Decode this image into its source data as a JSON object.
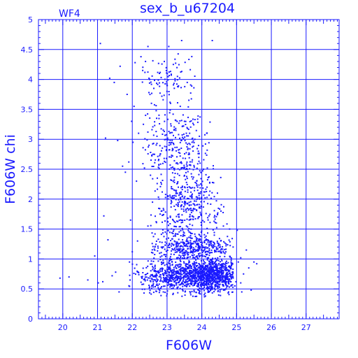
{
  "chart_data": {
    "type": "scatter",
    "title": "sex_b_u67204",
    "corner_label": "WF4",
    "xlabel": "F606W",
    "ylabel": "F606W chi",
    "xlim": [
      19.3,
      27.95
    ],
    "ylim": [
      0,
      5
    ],
    "x_ticks": [
      20,
      21,
      22,
      23,
      24,
      25,
      26,
      27
    ],
    "y_ticks": [
      0,
      0.5,
      1,
      1.5,
      2,
      2.5,
      3,
      3.5,
      4,
      4.5,
      5
    ],
    "x_tick_labels": [
      "20",
      "21",
      "22",
      "23",
      "24",
      "25",
      "26",
      "27"
    ],
    "y_tick_labels": [
      "0",
      "0.5",
      "1",
      "1.5",
      "2",
      "2.5",
      "3",
      "3.5",
      "4",
      "4.5",
      "5"
    ],
    "grid": true,
    "colors": {
      "ink": "#1a1aff",
      "background": "#ffffff"
    },
    "series": [
      {
        "points": [
          [
            19.92,
            0.68
          ],
          [
            20.18,
            0.7
          ],
          [
            20.72,
            0.65
          ],
          [
            20.92,
            1.05
          ],
          [
            21.02,
            0.6
          ],
          [
            21.08,
            4.6
          ],
          [
            21.15,
            0.62
          ],
          [
            21.18,
            1.72
          ],
          [
            21.23,
            3.02
          ],
          [
            21.3,
            1.32
          ],
          [
            21.35,
            4.02
          ],
          [
            21.42,
            0.72
          ],
          [
            21.48,
            3.95
          ],
          [
            21.52,
            0.78
          ],
          [
            21.58,
            2.98
          ],
          [
            21.62,
            0.45
          ],
          [
            21.65,
            4.22
          ],
          [
            21.72,
            2.55
          ],
          [
            21.8,
            2.45
          ],
          [
            21.85,
            3.75
          ],
          [
            21.9,
            2.62
          ],
          [
            21.92,
            0.95
          ],
          [
            21.95,
            1.65
          ],
          [
            21.98,
            3.3
          ],
          [
            22.0,
            1.12
          ],
          [
            22.02,
            2.95
          ],
          [
            22.05,
            3.55
          ],
          [
            22.08,
            4.28
          ],
          [
            22.12,
            2.3
          ],
          [
            22.15,
            1.3
          ],
          [
            22.18,
            3.1
          ],
          [
            22.25,
            4.38
          ],
          [
            22.3,
            4.15
          ],
          [
            22.32,
            3.25
          ],
          [
            22.38,
            4.3
          ],
          [
            22.45,
            4.55
          ],
          [
            22.5,
            4.0
          ],
          [
            22.55,
            3.6
          ],
          [
            22.62,
            3.85
          ],
          [
            22.7,
            3.35
          ],
          [
            22.78,
            4.1
          ],
          [
            22.85,
            3.72
          ],
          [
            22.92,
            4.3
          ],
          [
            23.0,
            3.9
          ],
          [
            23.05,
            4.55
          ],
          [
            23.1,
            3.6
          ],
          [
            23.18,
            4.25
          ],
          [
            23.25,
            3.15
          ],
          [
            23.3,
            4.05
          ],
          [
            23.38,
            3.55
          ],
          [
            23.42,
            4.65
          ],
          [
            23.5,
            3.3
          ],
          [
            23.58,
            3.95
          ],
          [
            23.65,
            3.1
          ],
          [
            23.72,
            2.95
          ],
          [
            23.8,
            3.0
          ],
          [
            23.9,
            2.8
          ],
          [
            23.95,
            2.6
          ],
          [
            24.05,
            2.5
          ],
          [
            24.15,
            2.2
          ],
          [
            24.3,
            4.65
          ],
          [
            24.45,
            2.1
          ],
          [
            24.55,
            1.8
          ],
          [
            24.62,
            1.55
          ],
          [
            24.7,
            1.25
          ],
          [
            24.8,
            1.5
          ],
          [
            24.9,
            1.2
          ],
          [
            24.95,
            0.55
          ],
          [
            25.02,
            1.48
          ],
          [
            25.05,
            0.95
          ],
          [
            25.12,
            0.6
          ],
          [
            25.2,
            0.75
          ],
          [
            25.28,
            1.15
          ],
          [
            25.35,
            0.85
          ],
          [
            25.42,
            0.48
          ],
          [
            25.5,
            0.95
          ],
          [
            25.58,
            0.92
          ],
          [
            25.12,
            1.02
          ],
          [
            24.98,
            0.62
          ],
          [
            25.15,
            0.45
          ],
          [
            22.48,
            2.9
          ],
          [
            22.6,
            2.75
          ],
          [
            22.35,
            2.52
          ],
          [
            22.72,
            2.35
          ],
          [
            22.58,
            1.95
          ],
          [
            22.8,
            1.75
          ],
          [
            22.45,
            1.55
          ],
          [
            22.95,
            1.45
          ],
          [
            22.65,
            1.2
          ],
          [
            22.85,
            1.05
          ]
        ],
        "clusters": [
          {
            "count": 900,
            "x_mean": 24.35,
            "x_sd": 0.42,
            "y_mean": 0.72,
            "y_sd": 0.15,
            "x_range": [
              23.0,
              24.9
            ],
            "y_range": [
              0.35,
              1.2
            ]
          },
          {
            "count": 450,
            "x_mean": 23.55,
            "x_sd": 0.45,
            "y_mean": 0.72,
            "y_sd": 0.14,
            "x_range": [
              22.35,
              24.9
            ],
            "y_range": [
              0.35,
              1.1
            ]
          },
          {
            "count": 220,
            "x_mean": 22.75,
            "x_sd": 0.38,
            "y_mean": 0.7,
            "y_sd": 0.16,
            "x_range": [
              21.9,
              23.4
            ],
            "y_range": [
              0.35,
              1.2
            ]
          },
          {
            "count": 420,
            "x_mean": 23.75,
            "x_sd": 0.55,
            "y_mean": 1.2,
            "y_sd": 0.12,
            "x_range": [
              22.5,
              24.9
            ],
            "y_range": [
              0.9,
              1.45
            ]
          },
          {
            "count": 480,
            "x_mean": 23.5,
            "x_sd": 0.55,
            "y_mean": 1.95,
            "y_sd": 0.4,
            "x_range": [
              22.5,
              24.75
            ],
            "y_range": [
              1.4,
              2.6
            ]
          },
          {
            "count": 280,
            "x_mean": 23.25,
            "x_sd": 0.5,
            "y_mean": 2.9,
            "y_sd": 0.35,
            "x_range": [
              22.3,
              24.3
            ],
            "y_range": [
              2.5,
              3.45
            ]
          },
          {
            "count": 120,
            "x_mean": 22.95,
            "x_sd": 0.5,
            "y_mean": 3.85,
            "y_sd": 0.35,
            "x_range": [
              22.2,
              23.8
            ],
            "y_range": [
              3.4,
              4.45
            ]
          }
        ]
      }
    ]
  }
}
